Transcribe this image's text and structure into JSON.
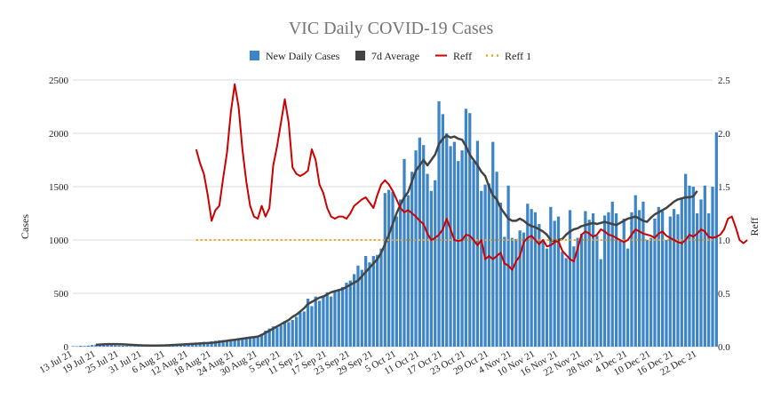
{
  "chart_data": {
    "type": "bar",
    "title": "VIC Daily COVID-19 Cases",
    "xlabel": "",
    "ylabel": "Cases",
    "y2label": "Reff",
    "ylim": [
      0,
      2500
    ],
    "y2lim": [
      0,
      2.5
    ],
    "yticks": [
      "0",
      "500",
      "1000",
      "1500",
      "2000",
      "2500"
    ],
    "y2ticks": [
      "0.0",
      "0.5",
      "1.0",
      "1.5",
      "2.0",
      "2.5"
    ],
    "grid": true,
    "legend_position": "top",
    "x_start": "13 Jul 21",
    "x_end": "26 Dec 21",
    "x_tick_labels": [
      "13 Jul 21",
      "19 Jul 21",
      "25 Jul 21",
      "31 Jul 21",
      "6 Aug 21",
      "12 Aug 21",
      "18 Aug 21",
      "24 Aug 21",
      "30 Aug 21",
      "5 Sep 21",
      "11 Sep 21",
      "17 Sep 21",
      "23 Sep 21",
      "29 Sep 21",
      "5 Oct 21",
      "11 Oct 21",
      "17 Oct 21",
      "23 Oct 21",
      "29 Oct 21",
      "4 Nov 21",
      "10 Nov 21",
      "16 Nov 21",
      "22 Nov 21",
      "28 Nov 21",
      "4 Dec 21",
      "10 Dec 21",
      "16 Dec 21",
      "22 Dec 21"
    ],
    "colors": {
      "bars": "#3d85c6",
      "average": "#434343",
      "reff": "#cc0000",
      "reff1": "#f1a31a"
    },
    "series": [
      {
        "name": "New Daily Cases",
        "kind": "bar",
        "values": [
          5,
          4,
          8,
          6,
          10,
          15,
          20,
          25,
          22,
          18,
          14,
          12,
          10,
          9,
          8,
          6,
          5,
          6,
          8,
          10,
          12,
          10,
          8,
          6,
          8,
          10,
          14,
          18,
          22,
          25,
          28,
          35,
          30,
          40,
          45,
          42,
          50,
          55,
          60,
          62,
          58,
          70,
          68,
          75,
          72,
          80,
          78,
          85,
          90,
          120,
          150,
          170,
          190,
          180,
          200,
          240,
          230,
          250,
          280,
          320,
          330,
          450,
          380,
          470,
          430,
          480,
          510,
          470,
          530,
          540,
          560,
          600,
          620,
          680,
          760,
          720,
          850,
          790,
          850,
          860,
          920,
          1440,
          1470,
          1450,
          1220,
          1380,
          1760,
          1420,
          1640,
          1840,
          1960,
          1890,
          1620,
          1460,
          1560,
          2300,
          2180,
          2000,
          1880,
          1920,
          1740,
          1840,
          2230,
          2190,
          1740,
          1930,
          1460,
          1520,
          1530,
          1920,
          1640,
          1350,
          1030,
          1510,
          1020,
          1010,
          1090,
          1070,
          1340,
          1290,
          1260,
          1150,
          1000,
          920,
          1310,
          1180,
          1220,
          890,
          830,
          1280,
          940,
          1020,
          1060,
          1270,
          1190,
          1250,
          1040,
          820,
          1230,
          1260,
          1360,
          1250,
          1000,
          1200,
          920,
          1260,
          1420,
          1280,
          1360,
          1000,
          1020,
          1200,
          1310,
          1270,
          1000,
          1220,
          1290,
          1240,
          1400,
          1620,
          1510,
          1500,
          1250,
          1380,
          1510,
          1250,
          1500,
          2010
        ]
      },
      {
        "name": "7d Average",
        "kind": "line",
        "x_start": "19 Jul 21",
        "values": [
          18,
          20,
          22,
          24,
          24,
          24,
          23,
          22,
          20,
          18,
          16,
          14,
          12,
          11,
          10,
          10,
          10,
          11,
          12,
          14,
          16,
          18,
          20,
          22,
          24,
          26,
          28,
          30,
          32,
          34,
          36,
          40,
          45,
          50,
          55,
          60,
          65,
          70,
          75,
          80,
          85,
          90,
          95,
          110,
          130,
          150,
          170,
          190,
          210,
          230,
          250,
          280,
          300,
          330,
          360,
          400,
          420,
          440,
          460,
          470,
          490,
          510,
          520,
          530,
          540,
          560,
          580,
          600,
          620,
          660,
          700,
          740,
          780,
          820,
          880,
          960,
          1050,
          1150,
          1250,
          1330,
          1400,
          1450,
          1550,
          1650,
          1700,
          1750,
          1700,
          1750,
          1800,
          1900,
          1950,
          1980,
          1960,
          1970,
          1950,
          1940,
          1880,
          1800,
          1750,
          1700,
          1640,
          1600,
          1500,
          1420,
          1380,
          1300,
          1250,
          1200,
          1180,
          1180,
          1200,
          1180,
          1150,
          1130,
          1120,
          1100,
          1080,
          1050,
          1000,
          990,
          1000,
          1010,
          1050,
          1080,
          1100,
          1110,
          1130,
          1140,
          1150,
          1160,
          1150,
          1160,
          1170,
          1160,
          1150,
          1140,
          1160,
          1180,
          1200,
          1210,
          1220,
          1200,
          1180,
          1170,
          1210,
          1240,
          1260,
          1280,
          1300,
          1330,
          1360,
          1380,
          1390,
          1400,
          1400,
          1410,
          1460
        ]
      },
      {
        "name": "Reff",
        "kind": "line",
        "x_start": "14 Aug 21",
        "values": [
          1.85,
          1.72,
          1.62,
          1.42,
          1.18,
          1.28,
          1.32,
          1.58,
          1.82,
          2.2,
          2.46,
          2.25,
          1.85,
          1.55,
          1.32,
          1.22,
          1.2,
          1.32,
          1.22,
          1.3,
          1.7,
          1.88,
          2.1,
          2.32,
          2.1,
          1.68,
          1.62,
          1.6,
          1.62,
          1.65,
          1.85,
          1.75,
          1.52,
          1.44,
          1.3,
          1.22,
          1.2,
          1.22,
          1.22,
          1.2,
          1.25,
          1.32,
          1.35,
          1.38,
          1.4,
          1.35,
          1.3,
          1.42,
          1.52,
          1.56,
          1.52,
          1.46,
          1.38,
          1.3,
          1.26,
          1.28,
          1.25,
          1.22,
          1.18,
          1.15,
          1.06,
          1.0,
          1.02,
          1.05,
          1.1,
          1.2,
          1.1,
          1.0,
          0.99,
          1.0,
          1.05,
          1.04,
          1.0,
          0.95,
          1.0,
          0.82,
          0.85,
          0.82,
          0.85,
          0.88,
          0.78,
          0.76,
          0.72,
          0.8,
          0.85,
          0.98,
          1.02,
          1.04,
          1.0,
          0.96,
          1.0,
          0.94,
          0.95,
          0.98,
          0.99,
          0.9,
          0.86,
          0.82,
          0.8,
          0.92,
          1.05,
          1.08,
          1.06,
          1.03,
          1.05,
          1.1,
          1.08,
          1.05,
          1.04,
          1.02,
          1.0,
          0.98,
          1.0,
          1.05,
          1.1,
          1.08,
          1.06,
          1.05,
          1.04,
          1.02,
          1.06,
          1.08,
          1.04,
          1.02,
          1.0,
          0.98,
          0.97,
          1.0,
          1.05,
          1.03,
          1.06,
          1.1,
          1.08,
          1.03,
          1.02,
          1.03,
          1.05,
          1.1,
          1.2,
          1.22,
          1.12,
          1.0,
          0.97,
          1.0
        ]
      },
      {
        "name": "Reff 1",
        "kind": "line",
        "x_start": "14 Aug 21",
        "x_end": "26 Dec 21",
        "values": [
          1.0,
          1.0
        ]
      }
    ]
  }
}
